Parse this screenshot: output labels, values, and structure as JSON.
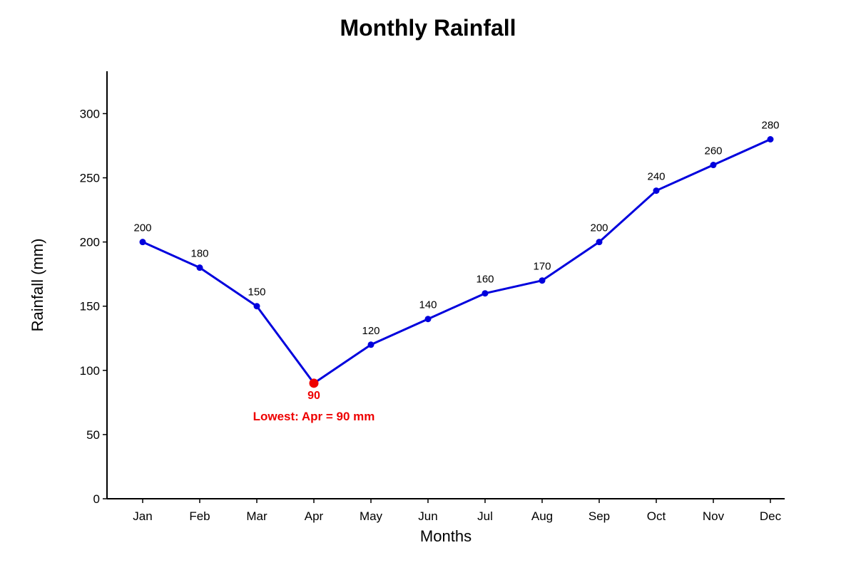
{
  "chart_data": {
    "type": "line",
    "title": "Monthly Rainfall",
    "xlabel": "Months",
    "ylabel": "Rainfall (mm)",
    "categories": [
      "Jan",
      "Feb",
      "Mar",
      "Apr",
      "May",
      "Jun",
      "Jul",
      "Aug",
      "Sep",
      "Oct",
      "Nov",
      "Dec"
    ],
    "series": [
      {
        "values": [
          200,
          180,
          150,
          90,
          120,
          140,
          160,
          170,
          200,
          240,
          260,
          280
        ]
      }
    ],
    "y_ticks": [
      0,
      50,
      100,
      150,
      200,
      250,
      300
    ],
    "ylim": [
      0,
      333
    ],
    "grid": false,
    "colors": {
      "line": "#0000dd",
      "highlight": "#ee0000",
      "axis": "#000000"
    },
    "highlight": {
      "category": "Apr",
      "value": 90
    },
    "annotation": "Lowest: Apr = 90 mm"
  }
}
